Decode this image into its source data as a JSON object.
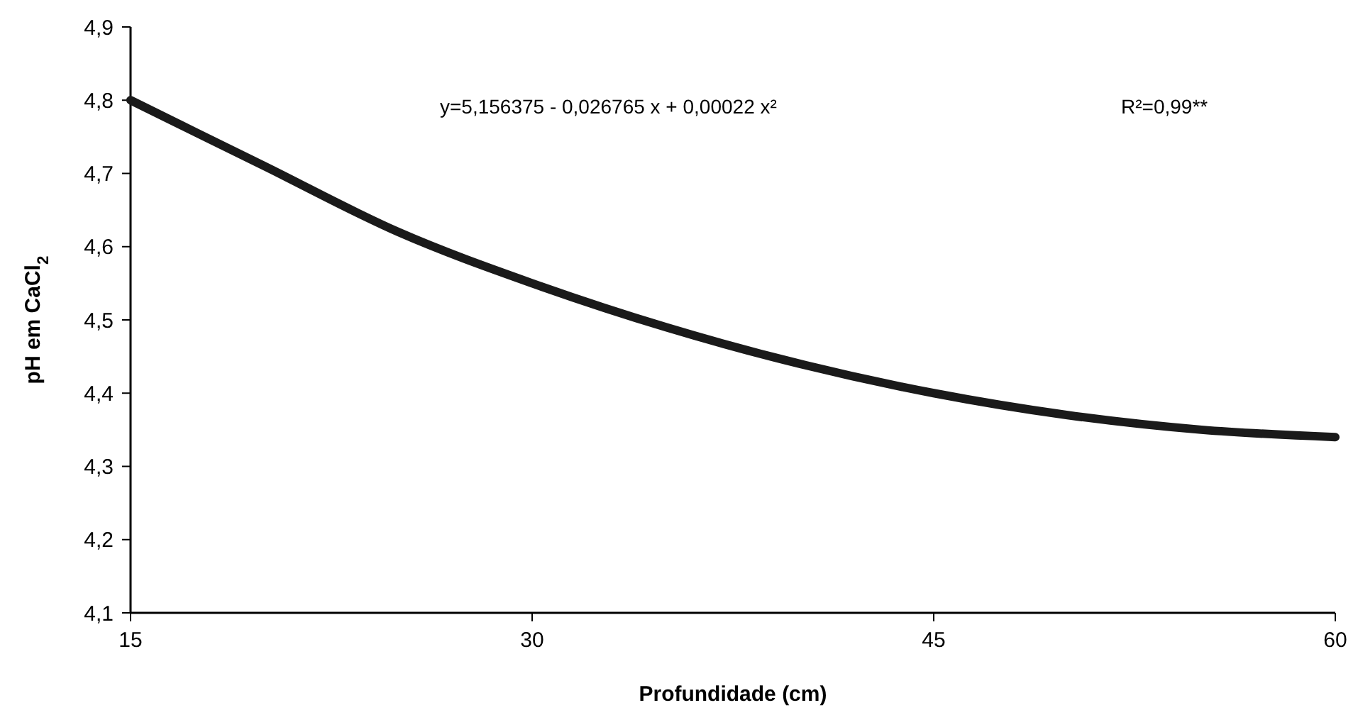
{
  "chart_data": {
    "type": "line",
    "xlabel": "Profundidade (cm)",
    "ylabel": "pH em CaCl$_{2}$",
    "x": [
      15,
      20,
      25,
      30,
      35,
      40,
      45,
      50,
      55,
      60
    ],
    "series": [
      {
        "color": "#1a1a1a",
        "values": [
          4.8,
          4.71,
          4.62,
          4.55,
          4.49,
          4.44,
          4.4,
          4.37,
          4.35,
          4.34
        ]
      }
    ],
    "xlim": [
      15,
      60
    ],
    "xticks": [
      15,
      30,
      45,
      60
    ],
    "ylim": [
      4.1,
      4.9
    ],
    "yticks": [
      {
        "value": 4.1,
        "label": "4,1"
      },
      {
        "value": 4.2,
        "label": "4,2"
      },
      {
        "value": 4.3,
        "label": "4,3"
      },
      {
        "value": 4.4,
        "label": "4,4"
      },
      {
        "value": 4.5,
        "label": "4,5"
      },
      {
        "value": 4.6,
        "label": "4,6"
      },
      {
        "value": 4.7,
        "label": "4,7"
      },
      {
        "value": 4.8,
        "label": "4,8"
      },
      {
        "value": 4.9,
        "label": "4,9"
      }
    ],
    "annotations": [
      "y=5,156375 - 0,026765 x + 0,00022 x²",
      "R²=0,99**"
    ],
    "grid": false,
    "marker": "none",
    "line_style": "solid"
  }
}
